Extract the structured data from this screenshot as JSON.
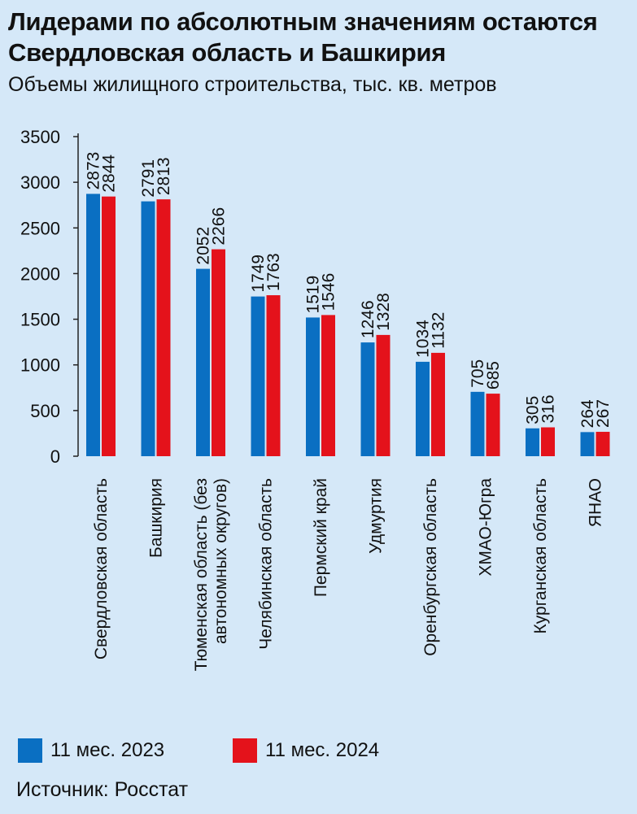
{
  "header": {
    "title": "Лидерами по абсолютным значениям остаются Свердловская область и Башкирия",
    "subtitle": "Объемы жилищного строительства, тыс. кв. метров"
  },
  "source": "Источник: Росстат",
  "colors": {
    "series_2023": "#0a6fc2",
    "series_2024": "#e4121b",
    "background": "#d5e8f8"
  },
  "chart_data": {
    "type": "bar",
    "title": "Лидерами по абсолютным значениям остаются Свердловская область и Башкирия",
    "subtitle": "Объемы жилищного строительства, тыс. кв. метров",
    "categories": [
      [
        "Свердловская область"
      ],
      [
        "Башкирия"
      ],
      [
        "Тюменская область (без",
        "автономных округов)"
      ],
      [
        "Челябинская область"
      ],
      [
        "Пермский край"
      ],
      [
        "Удмуртия"
      ],
      [
        "Оренбургская область"
      ],
      [
        "ХМАО-Югра"
      ],
      [
        "Курганская область"
      ],
      [
        "ЯНАО"
      ]
    ],
    "series": [
      {
        "name": "11 мес. 2023",
        "values": [
          2873,
          2791,
          2052,
          1749,
          1519,
          1246,
          1034,
          705,
          305,
          264
        ]
      },
      {
        "name": "11 мес. 2024",
        "values": [
          2844,
          2813,
          2266,
          1763,
          1546,
          1328,
          1132,
          685,
          316,
          267
        ]
      }
    ],
    "yticks": [
      0,
      500,
      1000,
      1500,
      2000,
      2500,
      3000,
      3500
    ],
    "ylim": [
      0,
      3500
    ],
    "xlabel": "",
    "ylabel": "",
    "grid": false,
    "legend": "bottom"
  }
}
